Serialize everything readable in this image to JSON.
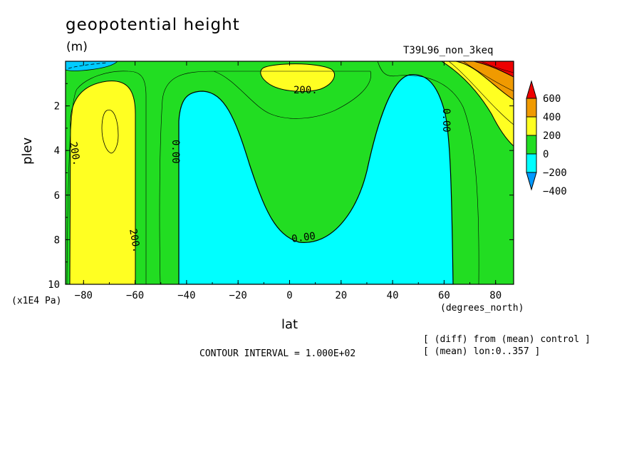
{
  "chart_data": {
    "type": "contour",
    "title": "geopotential height",
    "units": "(m)",
    "run_label": "T39L96_non_3keq",
    "xlabel": "lat",
    "x_units": "(degrees_north)",
    "ylabel": "plev",
    "y_units": "(x1E4 Pa)",
    "xlim": [
      -87,
      87
    ],
    "ylim": [
      10,
      0
    ],
    "x_ticks": [
      "-80",
      "-60",
      "-40",
      "-20",
      "0",
      "20",
      "40",
      "60",
      "80"
    ],
    "y_ticks": [
      "2",
      "4",
      "6",
      "8",
      "10"
    ],
    "contour_interval_text": "CONTOUR INTERVAL = 1.000E+02",
    "notes": [
      "[ (diff) from (mean) control ]",
      "[ (mean) lon:0..357 ]"
    ],
    "contour_labels": [
      "200.",
      "200.",
      "200.",
      "0.00",
      "0.00",
      "0.00"
    ],
    "colorbar": {
      "labels": [
        "600",
        "400",
        "200",
        "0",
        "-200",
        "-400"
      ],
      "colors": [
        "#ee0000",
        "#f09a00",
        "#ffff22",
        "#22dd22",
        "#00ffff",
        "#0099ff"
      ]
    },
    "regions": [
      {
        "range": "0 to 200",
        "color": "#22dd22"
      },
      {
        "range": "200 to 400",
        "color": "#ffff22"
      },
      {
        "range": "-200 to 0",
        "color": "#00ffff"
      },
      {
        "range": "400 to 600",
        "color": "#f09a00"
      },
      {
        "range": "above 600",
        "color": "#ee0000"
      }
    ]
  }
}
